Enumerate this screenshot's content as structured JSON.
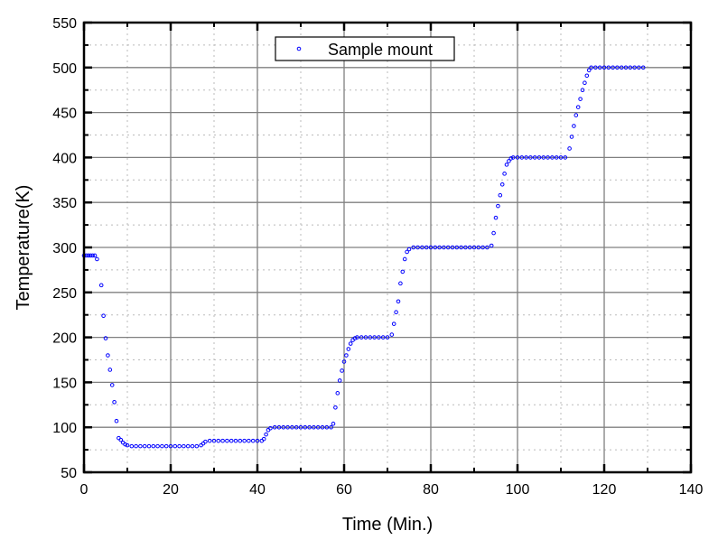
{
  "chart_data": {
    "type": "scatter",
    "title": "",
    "xlabel": "Time (Min.)",
    "ylabel": "Temperature(K)",
    "xlim": [
      0,
      140
    ],
    "ylim": [
      50,
      550
    ],
    "xticks": [
      0,
      20,
      40,
      60,
      80,
      100,
      120,
      140
    ],
    "yticks": [
      50,
      100,
      150,
      200,
      250,
      300,
      350,
      400,
      450,
      500,
      550
    ],
    "grid": true,
    "legend_position": "top-center",
    "marker_color": "#0000ff",
    "marker": "open-circle",
    "series": [
      {
        "name": "Sample mount",
        "x": [
          0,
          0.5,
          1,
          1.5,
          2,
          2.5,
          3,
          4,
          4.5,
          5,
          5.5,
          6,
          6.5,
          7,
          7.5,
          8,
          8.5,
          9,
          9.5,
          10,
          11,
          12,
          13,
          14,
          15,
          16,
          17,
          18,
          19,
          20,
          21,
          22,
          23,
          24,
          25,
          26,
          27,
          27.5,
          28,
          29,
          30,
          31,
          32,
          33,
          34,
          35,
          36,
          37,
          38,
          39,
          40,
          41,
          41.5,
          42,
          42.5,
          43,
          44,
          45,
          46,
          47,
          48,
          49,
          50,
          51,
          52,
          53,
          54,
          55,
          56,
          57,
          57.5,
          58,
          58.5,
          59,
          59.5,
          60,
          60.5,
          61,
          61.5,
          62,
          62.5,
          63,
          64,
          65,
          66,
          67,
          68,
          69,
          70,
          71,
          71.5,
          72,
          72.5,
          73,
          73.5,
          74,
          74.5,
          75,
          76,
          77,
          78,
          79,
          80,
          81,
          82,
          83,
          84,
          85,
          86,
          87,
          88,
          89,
          90,
          91,
          92,
          93,
          94,
          94.5,
          95,
          95.5,
          96,
          96.5,
          97,
          97.5,
          98,
          98.5,
          99,
          100,
          101,
          102,
          103,
          104,
          105,
          106,
          107,
          108,
          109,
          110,
          111,
          112,
          112.5,
          113,
          113.5,
          114,
          114.5,
          115,
          115.5,
          116,
          116.5,
          117,
          118,
          119,
          120,
          121,
          122,
          123,
          124,
          125,
          126,
          127,
          128,
          129
        ],
        "y": [
          291,
          291,
          291,
          291,
          291,
          291,
          287,
          258,
          224,
          199,
          180,
          164,
          147,
          128,
          107,
          88,
          86,
          83,
          81,
          80,
          79,
          79,
          79,
          79,
          79,
          79,
          79,
          79,
          79,
          79,
          79,
          79,
          79,
          79,
          79,
          79,
          80,
          82,
          84,
          85,
          85,
          85,
          85,
          85,
          85,
          85,
          85,
          85,
          85,
          85,
          85,
          85,
          87,
          92,
          97,
          99,
          100,
          100,
          100,
          100,
          100,
          100,
          100,
          100,
          100,
          100,
          100,
          100,
          100,
          100,
          104,
          122,
          138,
          152,
          163,
          173,
          180,
          187,
          193,
          197,
          199,
          200,
          200,
          200,
          200,
          200,
          200,
          200,
          200,
          203,
          215,
          228,
          240,
          260,
          273,
          287,
          295,
          298,
          300,
          300,
          300,
          300,
          300,
          300,
          300,
          300,
          300,
          300,
          300,
          300,
          300,
          300,
          300,
          300,
          300,
          300,
          302,
          316,
          333,
          346,
          358,
          370,
          382,
          392,
          396,
          399,
          400,
          400,
          400,
          400,
          400,
          400,
          400,
          400,
          400,
          400,
          400,
          400,
          400,
          410,
          423,
          435,
          447,
          456,
          465,
          475,
          483,
          491,
          497,
          500,
          500,
          500,
          500,
          500,
          500,
          500,
          500,
          500,
          500,
          500,
          500,
          500
        ]
      }
    ]
  }
}
